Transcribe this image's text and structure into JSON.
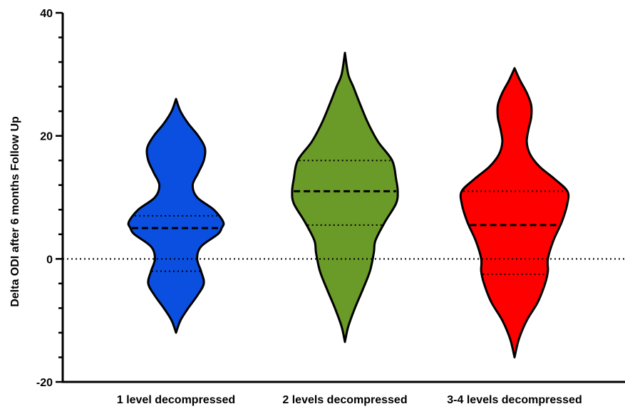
{
  "chart_data": {
    "type": "violin",
    "title": "",
    "xlabel": "",
    "ylabel": "Delta ODI after 6 months Follow Up",
    "ylim": [
      -20,
      40
    ],
    "yticks": [
      -20,
      0,
      20,
      40
    ],
    "reference_line": 0,
    "grid": false,
    "legend": "none",
    "categories": [
      "1 level decompressed",
      "2 levels decompressed",
      "3-4 levels decompressed"
    ],
    "series": [
      {
        "fill": "#0b4fe0",
        "min": -12,
        "max": 26,
        "median": 5,
        "q1": -2,
        "q3": 7,
        "density": [
          [
            -12,
            0.0
          ],
          [
            -10,
            0.08
          ],
          [
            -8,
            0.22
          ],
          [
            -6,
            0.38
          ],
          [
            -4,
            0.5
          ],
          [
            -2,
            0.45
          ],
          [
            0,
            0.38
          ],
          [
            2,
            0.45
          ],
          [
            4,
            0.75
          ],
          [
            5,
            0.82
          ],
          [
            6,
            0.85
          ],
          [
            8,
            0.68
          ],
          [
            10,
            0.38
          ],
          [
            12,
            0.3
          ],
          [
            14,
            0.4
          ],
          [
            16,
            0.5
          ],
          [
            18,
            0.52
          ],
          [
            20,
            0.4
          ],
          [
            22,
            0.22
          ],
          [
            24,
            0.08
          ],
          [
            26,
            0.0
          ]
        ]
      },
      {
        "fill": "#6a9a27",
        "min": -13.5,
        "max": 33.5,
        "median": 11,
        "q1": 5.5,
        "q3": 16,
        "density": [
          [
            -13.5,
            0.0
          ],
          [
            -11,
            0.06
          ],
          [
            -8,
            0.18
          ],
          [
            -5,
            0.32
          ],
          [
            -2,
            0.45
          ],
          [
            1,
            0.52
          ],
          [
            3,
            0.55
          ],
          [
            6,
            0.72
          ],
          [
            9,
            0.92
          ],
          [
            11,
            0.95
          ],
          [
            13,
            0.92
          ],
          [
            16,
            0.85
          ],
          [
            19,
            0.6
          ],
          [
            22,
            0.42
          ],
          [
            25,
            0.28
          ],
          [
            28,
            0.15
          ],
          [
            30,
            0.06
          ],
          [
            33.5,
            0.0
          ]
        ]
      },
      {
        "fill": "#ff0000",
        "min": -16,
        "max": 31,
        "median": 5.5,
        "q1": -2.5,
        "q3": 11,
        "density": [
          [
            -16,
            0.0
          ],
          [
            -13,
            0.08
          ],
          [
            -10,
            0.22
          ],
          [
            -7,
            0.42
          ],
          [
            -4,
            0.55
          ],
          [
            -2,
            0.6
          ],
          [
            0,
            0.6
          ],
          [
            3,
            0.7
          ],
          [
            6,
            0.85
          ],
          [
            9,
            0.95
          ],
          [
            11,
            0.95
          ],
          [
            13,
            0.72
          ],
          [
            15,
            0.45
          ],
          [
            17,
            0.28
          ],
          [
            19,
            0.22
          ],
          [
            21,
            0.25
          ],
          [
            23,
            0.3
          ],
          [
            25,
            0.3
          ],
          [
            27,
            0.22
          ],
          [
            29,
            0.1
          ],
          [
            31,
            0.0
          ]
        ]
      }
    ]
  }
}
